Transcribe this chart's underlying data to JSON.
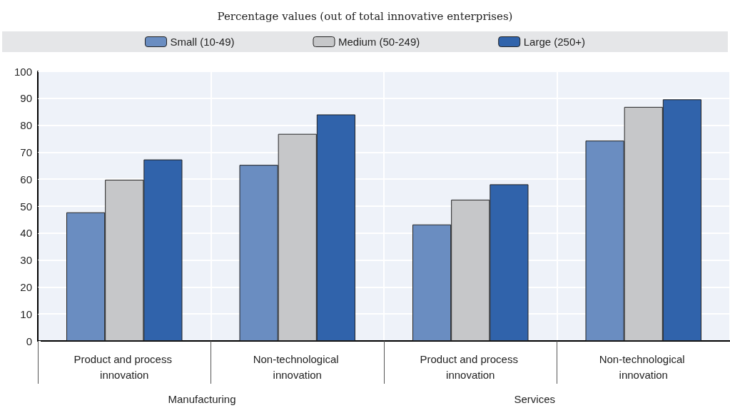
{
  "chart_data": {
    "type": "bar",
    "title": "Percentage values (out of total innovative enterprises)",
    "categories": [
      "Product and process innovation",
      "Non-technological innovation",
      "Product and process innovation",
      "Non-technological innovation"
    ],
    "series": [
      {
        "name": "Small (10-49)",
        "color": "#6a8dc1",
        "values": [
          47.7,
          65.3,
          43.2,
          74.3
        ]
      },
      {
        "name": "Medium (50-249)",
        "color": "#c6c7c9",
        "values": [
          59.8,
          76.8,
          52.4,
          86.8
        ]
      },
      {
        "name": "Large (250+)",
        "color": "#3063ab",
        "values": [
          67.3,
          84.0,
          58.1,
          89.6
        ]
      }
    ],
    "annotations": [
      "Manufacturing",
      "Services"
    ],
    "ylim": [
      0,
      100
    ],
    "yticks": [
      0,
      10,
      20,
      30,
      40,
      50,
      60,
      70,
      80,
      90,
      100
    ],
    "grid": true,
    "legend": "top"
  }
}
